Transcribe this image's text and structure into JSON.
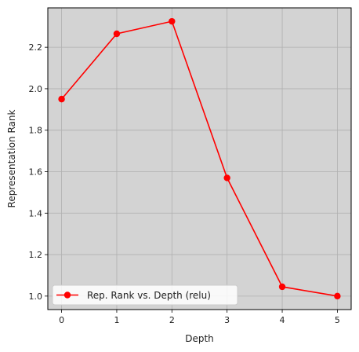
{
  "chart_data": {
    "type": "line",
    "title": "",
    "xlabel": "Depth",
    "ylabel": "Representation Rank",
    "x": [
      0,
      1,
      2,
      3,
      4,
      5
    ],
    "xticks": [
      "0",
      "1",
      "2",
      "3",
      "4",
      "5"
    ],
    "xlim": [
      -0.25,
      5.25
    ],
    "yticks": [
      "1.0",
      "1.2",
      "1.4",
      "1.6",
      "1.8",
      "2.0",
      "2.2"
    ],
    "ylim": [
      0.935,
      2.39
    ],
    "grid": true,
    "legend_position": "lower-left",
    "series": [
      {
        "name": "Rep. Rank vs. Depth (relu)",
        "values": [
          1.95,
          2.265,
          2.325,
          1.57,
          1.045,
          1.0
        ],
        "color": "#ff0000",
        "marker": "circle"
      }
    ],
    "colors": {
      "plot_background": "#d3d3d3",
      "grid": "#b0b0b0",
      "axes": "#000000"
    }
  }
}
